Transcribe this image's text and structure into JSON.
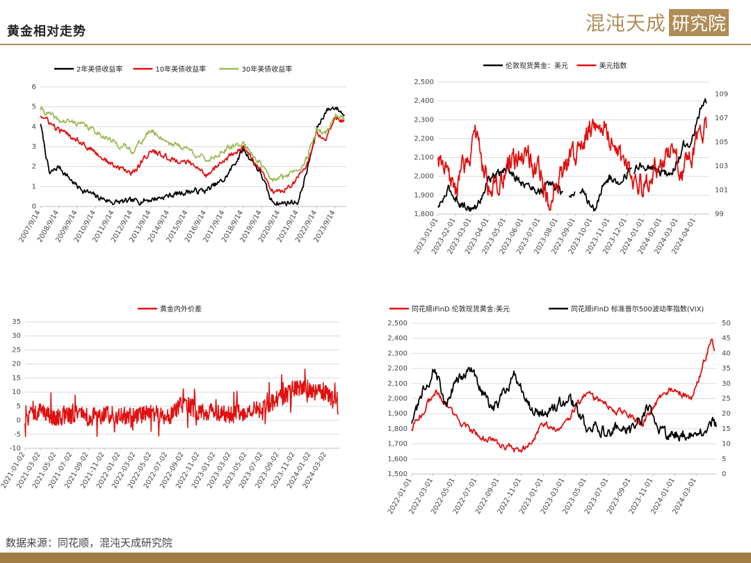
{
  "header": {
    "title": "黄金相对走势",
    "logo_text": "混沌天成",
    "logo_box": "研究院"
  },
  "footer": {
    "source": "数据来源：同花顺，混沌天成研究院"
  },
  "colors": {
    "black": "#000000",
    "red": "#e01010",
    "green": "#9bbb59",
    "accent": "#b08d57"
  },
  "chart_data": [
    {
      "type": "line",
      "series": [
        {
          "name": "2年美债收益率",
          "color": "#000000",
          "x": [
            "2007-09-14",
            "2008-03-14",
            "2008-09-14",
            "2009-09-14",
            "2010-09-14",
            "2011-09-14",
            "2012-09-14",
            "2013-09-14",
            "2014-09-14",
            "2015-09-14",
            "2016-09-14",
            "2017-09-14",
            "2018-09-14",
            "2019-03-14",
            "2019-09-14",
            "2020-03-14",
            "2020-09-14",
            "2021-09-14",
            "2022-03-14",
            "2022-09-14",
            "2023-03-14",
            "2023-09-14",
            "2024-03-14"
          ],
          "values": [
            4.2,
            1.6,
            2.0,
            1.0,
            0.5,
            0.2,
            0.25,
            0.35,
            0.55,
            0.75,
            0.8,
            1.35,
            2.85,
            2.3,
            1.6,
            0.3,
            0.15,
            0.25,
            1.9,
            3.9,
            4.8,
            5.0,
            4.6
          ]
        },
        {
          "name": "10年美债收益率",
          "color": "#e01010",
          "x": [
            "2007-09-14",
            "2008-09-14",
            "2009-09-14",
            "2010-09-14",
            "2011-09-14",
            "2012-09-14",
            "2013-09-14",
            "2014-09-14",
            "2015-09-14",
            "2016-09-14",
            "2017-09-14",
            "2018-09-14",
            "2019-09-14",
            "2020-03-14",
            "2020-09-14",
            "2021-09-14",
            "2022-03-14",
            "2022-09-14",
            "2023-03-14",
            "2023-09-14",
            "2024-03-14"
          ],
          "values": [
            4.6,
            3.8,
            3.4,
            2.7,
            2.0,
            1.7,
            2.8,
            2.4,
            2.2,
            1.6,
            2.3,
            3.0,
            1.7,
            0.8,
            0.7,
            1.4,
            2.2,
            3.7,
            3.5,
            4.5,
            4.3
          ]
        },
        {
          "name": "30年美债收益率",
          "color": "#9bbb59",
          "x": [
            "2007-09-14",
            "2008-09-14",
            "2009-09-14",
            "2010-09-14",
            "2011-09-14",
            "2012-09-14",
            "2013-09-14",
            "2014-09-14",
            "2015-09-14",
            "2016-09-14",
            "2017-09-14",
            "2018-09-14",
            "2019-09-14",
            "2020-03-14",
            "2020-09-14",
            "2021-09-14",
            "2022-03-14",
            "2022-09-14",
            "2023-03-14",
            "2023-09-14",
            "2024-03-14"
          ],
          "values": [
            4.9,
            4.3,
            4.2,
            3.8,
            3.2,
            2.8,
            3.8,
            3.2,
            2.9,
            2.3,
            2.8,
            3.2,
            2.1,
            1.3,
            1.4,
            1.9,
            2.5,
            3.8,
            3.7,
            4.6,
            4.4
          ]
        }
      ],
      "x_tick_labels": [
        "2007/9/14",
        "2008/9/14",
        "2009/9/14",
        "2010/9/14",
        "2011/9/14",
        "2012/9/14",
        "2013/9/14",
        "2014/9/14",
        "2015/9/14",
        "2016/9/14",
        "2017/9/14",
        "2018/9/14",
        "2019/9/14",
        "2020/9/14",
        "2021/9/14",
        "2022/9/14",
        "2023/9/14"
      ],
      "y_ticks": [
        "0",
        "1",
        "2",
        "3",
        "4",
        "5",
        "6"
      ],
      "ylim": [
        0,
        6
      ],
      "grid": true,
      "legend": "top"
    },
    {
      "type": "line",
      "series": [
        {
          "name": "伦敦现货黄金：美元",
          "color": "#000000",
          "axis": "left",
          "x": [
            "2023-01-01",
            "2023-01-20",
            "2023-02-15",
            "2023-03-10",
            "2023-04-01",
            "2023-04-15",
            "2023-05-05",
            "2023-06-01",
            "2023-07-01",
            "2023-07-20",
            "2023-08-20",
            "2023-09-10",
            "2023-10-05",
            "2023-10-25",
            "2023-11-20",
            "2023-12-05",
            "2024-01-01",
            "2024-02-01",
            "2024-02-15",
            "2024-03-01",
            "2024-03-10",
            "2024-03-25",
            "2024-04-12",
            "2024-04-20"
          ],
          "values": [
            1830,
            1930,
            1840,
            1830,
            1990,
            2010,
            2040,
            1960,
            1920,
            1960,
            1890,
            1930,
            1820,
            1990,
            1980,
            2030,
            2060,
            2030,
            2000,
            2080,
            2170,
            2180,
            2380,
            2390
          ]
        },
        {
          "name": "美元指数",
          "color": "#e01010",
          "axis": "right",
          "x": [
            "2023-01-01",
            "2023-01-15",
            "2023-02-01",
            "2023-03-08",
            "2023-04-01",
            "2023-04-15",
            "2023-05-31",
            "2023-07-01",
            "2023-07-15",
            "2023-08-15",
            "2023-09-15",
            "2023-10-03",
            "2023-10-20",
            "2023-11-15",
            "2023-12-15",
            "2024-01-01",
            "2024-02-15",
            "2024-03-10",
            "2024-04-01",
            "2024-04-16",
            "2024-04-20"
          ],
          "values": [
            103.5,
            102.2,
            101.0,
            105.5,
            101.5,
            101.0,
            104.2,
            102.5,
            99.8,
            103.0,
            105.0,
            107.0,
            106.5,
            104.0,
            101.8,
            101.5,
            104.2,
            102.7,
            104.5,
            106.2,
            106.0
          ]
        }
      ],
      "x_tick_labels": [
        "2023-01-01",
        "2023-02-01",
        "2023-03-01",
        "2023-04-01",
        "2023-05-01",
        "2023-06-01",
        "2023-07-01",
        "2023-08-01",
        "2023-09-01",
        "2023-10-01",
        "2023-11-01",
        "2023-12-01",
        "2024-01-01",
        "2024-02-01",
        "2024-03-01",
        "2024-04-01"
      ],
      "y_ticks_left": [
        "1,800",
        "1,900",
        "2,000",
        "2,100",
        "2,200",
        "2,300",
        "2,400",
        "2,500"
      ],
      "y_ticks_right": [
        "99",
        "101",
        "103",
        "105",
        "107",
        "109"
      ],
      "ylim_left": [
        1800,
        2500
      ],
      "ylim_right": [
        99,
        110
      ],
      "grid": true,
      "legend": "top"
    },
    {
      "type": "line",
      "series": [
        {
          "name": "黄金内外价差",
          "color": "#e01010",
          "x": [
            "2021-01-02",
            "2021-03-02",
            "2021-05-02",
            "2021-07-02",
            "2021-09-02",
            "2021-11-02",
            "2022-01-02",
            "2022-03-02",
            "2022-05-02",
            "2022-07-02",
            "2022-09-02",
            "2022-11-02",
            "2023-01-02",
            "2023-03-02",
            "2023-05-02",
            "2023-07-02",
            "2023-09-02",
            "2023-10-02",
            "2023-11-02",
            "2024-01-02",
            "2024-03-02",
            "2024-04-15"
          ],
          "values": [
            2,
            3,
            1,
            2,
            1,
            2,
            2,
            1,
            3,
            1,
            6,
            3,
            3,
            2,
            3,
            4,
            8,
            9,
            12,
            11,
            10,
            5
          ]
        }
      ],
      "x_tick_labels": [
        "2021-01-02",
        "2021-03-02",
        "2021-05-02",
        "2021-07-02",
        "2021-09-02",
        "2021-11-02",
        "2022-01-02",
        "2022-03-02",
        "2022-05-02",
        "2022-07-02",
        "2022-09-02",
        "2022-11-02",
        "2023-01-02",
        "2023-03-02",
        "2023-05-02",
        "2023-07-02",
        "2023-09-02",
        "2023-11-02",
        "2024-01-02",
        "2024-03-02"
      ],
      "y_ticks": [
        "-10",
        "-5",
        "0",
        "5",
        "10",
        "15",
        "20",
        "25",
        "30",
        "35"
      ],
      "ylim": [
        -10,
        35
      ],
      "grid": true,
      "legend": "top"
    },
    {
      "type": "line",
      "series": [
        {
          "name": "同花顺iFinD 伦敦现货黄金:美元",
          "color": "#e01010",
          "axis": "left",
          "x": [
            "2022-01-01",
            "2022-03-08",
            "2022-05-15",
            "2022-07-01",
            "2022-09-01",
            "2022-11-01",
            "2023-01-01",
            "2023-02-20",
            "2023-05-01",
            "2023-07-01",
            "2023-08-20",
            "2023-10-05",
            "2023-12-01",
            "2024-01-01",
            "2024-02-15",
            "2024-03-01",
            "2024-04-12",
            "2024-04-20"
          ],
          "values": [
            1800,
            2050,
            1840,
            1760,
            1700,
            1640,
            1830,
            1800,
            2040,
            1950,
            1890,
            1830,
            2050,
            2060,
            2000,
            2080,
            2400,
            2320
          ]
        },
        {
          "name": "同花顺iFinD 标准普尔500波动率指数(VIX)",
          "color": "#000000",
          "axis": "right",
          "x": [
            "2022-01-01",
            "2022-02-01",
            "2022-03-07",
            "2022-04-01",
            "2022-05-10",
            "2022-06-15",
            "2022-08-15",
            "2022-10-12",
            "2022-12-01",
            "2023-01-15",
            "2023-03-13",
            "2023-05-01",
            "2023-07-01",
            "2023-08-01",
            "2023-09-01",
            "2023-10-20",
            "2023-12-01",
            "2024-01-01",
            "2024-03-01",
            "2024-04-10",
            "2024-04-19",
            "2024-04-25"
          ],
          "values": [
            17,
            27,
            36,
            23,
            32,
            34,
            21,
            33,
            21,
            20,
            26,
            16,
            14,
            16,
            14,
            22,
            13,
            13,
            14,
            15,
            19,
            16
          ]
        }
      ],
      "x_tick_labels": [
        "2022-01-01",
        "2022-03-01",
        "2022-05-01",
        "2022-07-01",
        "2022-09-01",
        "2022-11-01",
        "2023-01-01",
        "2023-03-01",
        "2023-05-01",
        "2023-07-01",
        "2023-09-01",
        "2023-11-01",
        "2024-01-01",
        "2024-03-01"
      ],
      "y_ticks_left": [
        "1,500",
        "1,600",
        "1,700",
        "1,800",
        "1,900",
        "2,000",
        "2,100",
        "2,200",
        "2,300",
        "2,400",
        "2,500"
      ],
      "y_ticks_right": [
        "0",
        "5",
        "10",
        "15",
        "20",
        "25",
        "30",
        "35",
        "40",
        "45",
        "50"
      ],
      "ylim_left": [
        1500,
        2500
      ],
      "ylim_right": [
        0,
        50
      ],
      "grid": true,
      "legend": "top"
    }
  ]
}
